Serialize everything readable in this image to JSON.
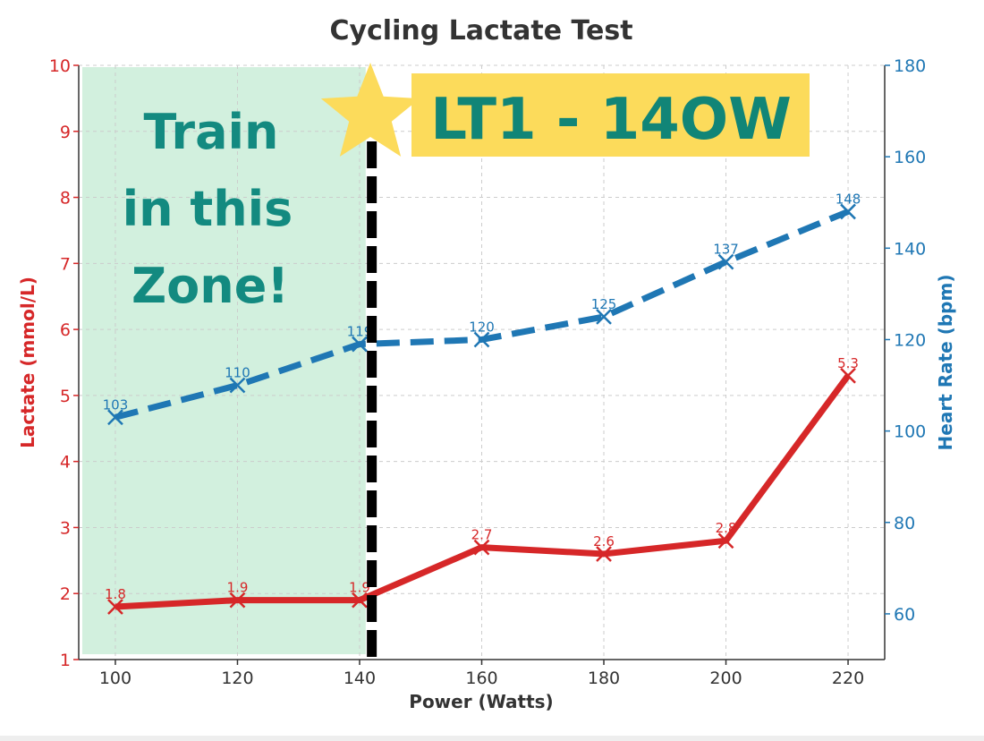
{
  "chart_data": {
    "type": "line",
    "title": "Cycling Lactate Test",
    "xlabel": "Power (Watts)",
    "ylabel_left": "Lactate (mmol/L)",
    "ylabel_right": "Heart Rate (bpm)",
    "x": [
      100,
      120,
      140,
      160,
      180,
      200,
      220
    ],
    "xlim": [
      94,
      226
    ],
    "ylim_left": [
      1,
      10
    ],
    "ylim_right": [
      50,
      180
    ],
    "x_ticks": [
      "100",
      "120",
      "140",
      "160",
      "180",
      "200",
      "220"
    ],
    "left_ticks": [
      "1",
      "2",
      "3",
      "4",
      "5",
      "6",
      "7",
      "8",
      "9",
      "10"
    ],
    "right_ticks": [
      "60",
      "80",
      "100",
      "120",
      "140",
      "160",
      "180"
    ],
    "grid": true,
    "series": [
      {
        "axis": "left",
        "color": "#d62728",
        "style": "solid",
        "marker": "x",
        "values": [
          1.8,
          1.9,
          1.9,
          2.7,
          2.6,
          2.8,
          5.3
        ],
        "labels": [
          "1.8",
          "1.9",
          "1.9",
          "2.7",
          "2.6",
          "2.8",
          "5.3"
        ]
      },
      {
        "axis": "right",
        "color": "#1f77b4",
        "style": "dashed",
        "marker": "x",
        "values": [
          103,
          110,
          119,
          120,
          125,
          137,
          148
        ],
        "labels": [
          "103",
          "110",
          "119",
          "120",
          "125",
          "137",
          "148"
        ]
      }
    ],
    "annotations": {
      "zone_lines": [
        "Train",
        "in this",
        "Zone!"
      ],
      "zone_range": [
        94,
        141
      ],
      "zone_color": "#d2f0de",
      "threshold_x": 142,
      "threshold_color": "#000000",
      "banner_text": "LT1 - 14OW",
      "banner_color": "#fcdb5b",
      "star_color": "#fcdb5b",
      "zone_text_color": "#138a80"
    }
  }
}
